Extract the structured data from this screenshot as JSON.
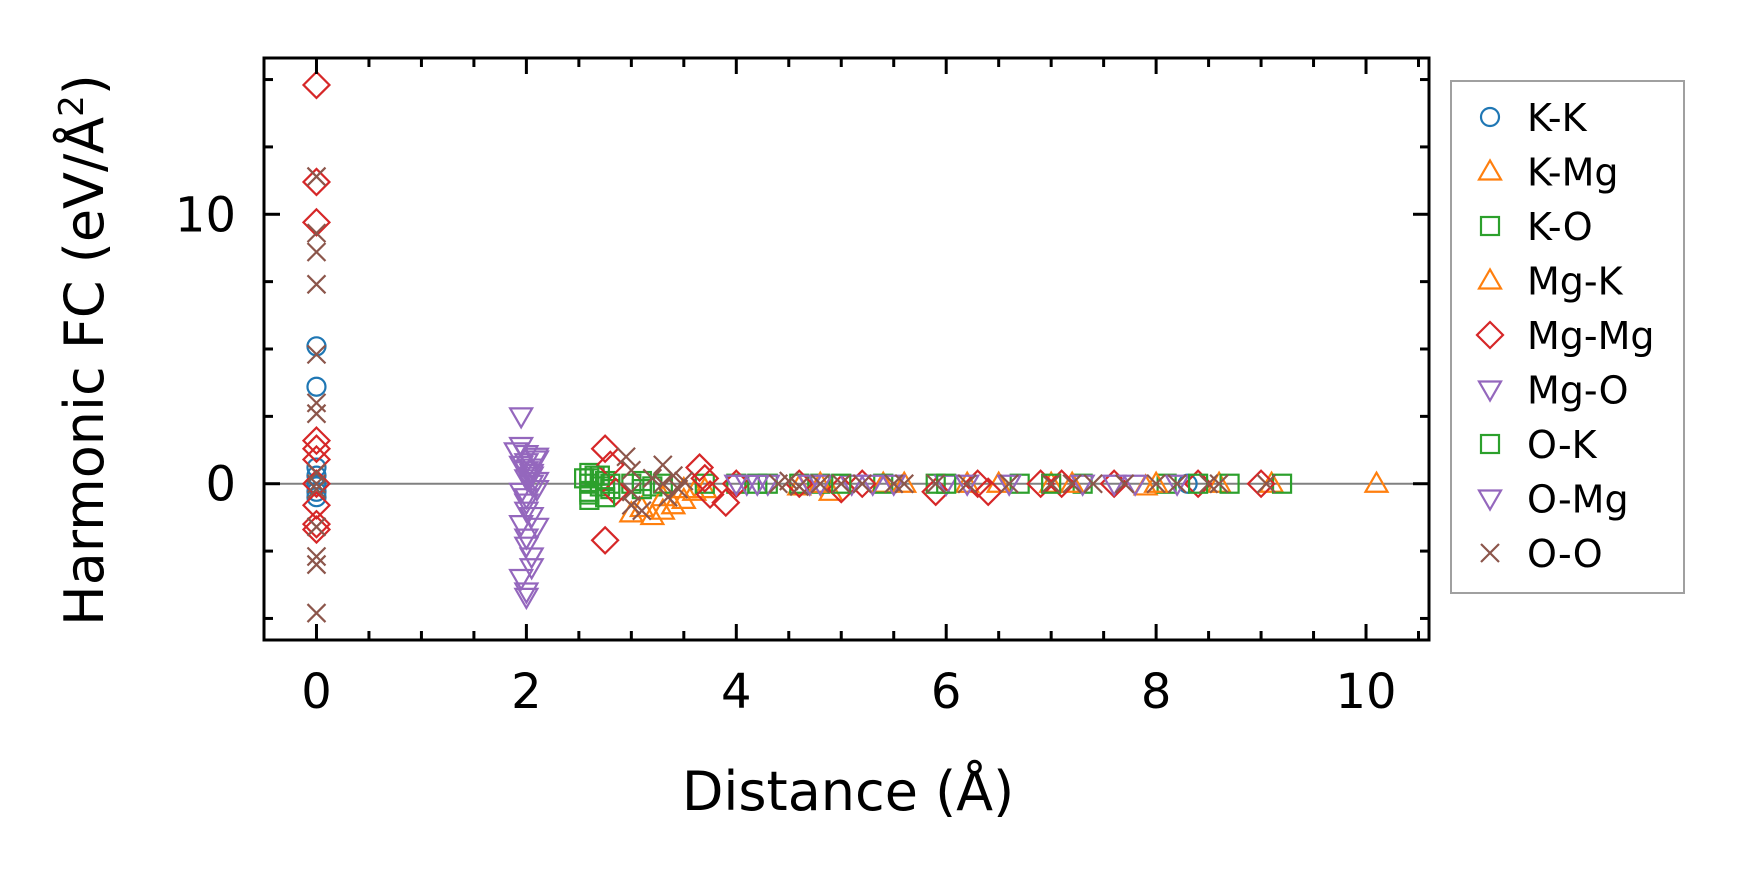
{
  "chart_data": {
    "type": "scatter",
    "title": "",
    "xlabel": "Distance (Å)",
    "ylabel_main": "Harmonic FC (eV/Å",
    "ylabel_sup": "2",
    "ylabel_close": ")",
    "xlim": [
      -0.5,
      10.6
    ],
    "ylim": [
      -5.8,
      15.8
    ],
    "x_ticks": [
      0,
      2,
      4,
      6,
      8,
      10
    ],
    "x_tick_labels": [
      "0",
      "2",
      "4",
      "6",
      "8",
      "10"
    ],
    "y_ticks": [
      0,
      10
    ],
    "y_tick_labels": [
      "0",
      "10"
    ],
    "zero_line": true,
    "grid": false,
    "legend_position": "right, outside plot",
    "series": [
      {
        "name": "K-K",
        "marker": "circle",
        "color": "#1f77b4",
        "points": [
          [
            0,
            5.1
          ],
          [
            0,
            3.6
          ],
          [
            0,
            0.6
          ],
          [
            0,
            0.3
          ],
          [
            0,
            0
          ],
          [
            0,
            -0.1
          ],
          [
            0,
            -0.3
          ],
          [
            0,
            -0.5
          ],
          [
            8.3,
            0
          ]
        ]
      },
      {
        "name": "K-Mg",
        "marker": "triangle-up",
        "color": "#ff7f0e",
        "points": [
          [
            3.2,
            -1.2
          ],
          [
            3.3,
            -1.0
          ],
          [
            3.4,
            -0.8
          ],
          [
            3.5,
            -0.6
          ],
          [
            3.6,
            -0.3
          ],
          [
            3.7,
            -0.2
          ],
          [
            4.6,
            -0.1
          ],
          [
            4.9,
            -0.3
          ],
          [
            5.4,
            0
          ],
          [
            6.2,
            0
          ],
          [
            7.0,
            0
          ],
          [
            7.9,
            -0.1
          ],
          [
            8.6,
            0
          ],
          [
            9.1,
            0
          ],
          [
            10.1,
            0
          ]
        ]
      },
      {
        "name": "K-O",
        "marker": "square",
        "color": "#2ca02c",
        "points": [
          [
            2.6,
            0.4
          ],
          [
            2.6,
            0.2
          ],
          [
            2.6,
            0
          ],
          [
            2.6,
            -0.3
          ],
          [
            2.6,
            -0.6
          ],
          [
            2.65,
            0.3
          ],
          [
            2.7,
            -0.1
          ],
          [
            2.75,
            0.1
          ],
          [
            2.8,
            -0.2
          ],
          [
            3.0,
            0
          ],
          [
            3.1,
            0.1
          ],
          [
            3.2,
            -0.1
          ],
          [
            3.7,
            0
          ],
          [
            4.0,
            0
          ],
          [
            4.3,
            0
          ],
          [
            4.6,
            0
          ],
          [
            4.8,
            0
          ],
          [
            5.4,
            0
          ],
          [
            5.9,
            0
          ],
          [
            6.7,
            0
          ],
          [
            7.3,
            0
          ],
          [
            8.1,
            0
          ],
          [
            8.7,
            0
          ],
          [
            9.2,
            0
          ]
        ]
      },
      {
        "name": "Mg-K",
        "marker": "triangle-up",
        "color": "#ff7f0e",
        "points": [
          [
            3.0,
            -1.1
          ],
          [
            3.1,
            -0.9
          ],
          [
            3.3,
            -0.5
          ],
          [
            3.5,
            -0.2
          ],
          [
            4.8,
            0
          ],
          [
            5.6,
            0
          ],
          [
            6.5,
            0
          ],
          [
            7.2,
            0
          ],
          [
            8.0,
            0
          ]
        ]
      },
      {
        "name": "Mg-Mg",
        "marker": "diamond",
        "color": "#d62728",
        "points": [
          [
            0,
            14.8
          ],
          [
            0,
            11.2
          ],
          [
            0,
            9.7
          ],
          [
            0,
            1.6
          ],
          [
            0,
            1.3
          ],
          [
            0,
            0.9
          ],
          [
            0,
            0
          ],
          [
            0,
            -0.8
          ],
          [
            0,
            -1.5
          ],
          [
            0,
            -1.7
          ],
          [
            2.75,
            1.3
          ],
          [
            2.8,
            0.7
          ],
          [
            2.75,
            -2.1
          ],
          [
            2.85,
            -0.3
          ],
          [
            3.65,
            0.6
          ],
          [
            3.7,
            0.2
          ],
          [
            3.75,
            -0.4
          ],
          [
            3.9,
            -0.7
          ],
          [
            4.0,
            0
          ],
          [
            4.6,
            0
          ],
          [
            5.0,
            -0.2
          ],
          [
            5.2,
            0
          ],
          [
            5.9,
            -0.3
          ],
          [
            6.3,
            0
          ],
          [
            6.4,
            -0.3
          ],
          [
            6.9,
            0
          ],
          [
            7.1,
            0
          ],
          [
            7.6,
            0
          ],
          [
            8.4,
            0
          ],
          [
            9.0,
            0
          ]
        ]
      },
      {
        "name": "Mg-O",
        "marker": "triangle-down",
        "color": "#9467bd",
        "points": [
          [
            1.95,
            2.5
          ],
          [
            1.95,
            1.4
          ],
          [
            2.0,
            1.1
          ],
          [
            2.0,
            0.8
          ],
          [
            2.05,
            0.6
          ],
          [
            2.0,
            0.2
          ],
          [
            2.05,
            0
          ],
          [
            2.0,
            -0.5
          ],
          [
            2.0,
            -1.0
          ],
          [
            1.95,
            -1.5
          ],
          [
            2.0,
            -2.0
          ],
          [
            2.05,
            -2.7
          ],
          [
            1.95,
            -3.5
          ],
          [
            2.0,
            -4.0
          ],
          [
            2.05,
            0.4
          ],
          [
            2.1,
            -0.2
          ],
          [
            2.1,
            1.0
          ],
          [
            4.0,
            0
          ],
          [
            4.1,
            0
          ],
          [
            4.3,
            0
          ],
          [
            4.8,
            0
          ],
          [
            5.1,
            0
          ],
          [
            5.3,
            0
          ],
          [
            6.0,
            0
          ],
          [
            6.6,
            0
          ],
          [
            7.3,
            0
          ],
          [
            7.6,
            0
          ],
          [
            8.2,
            0
          ]
        ]
      },
      {
        "name": "O-K",
        "marker": "square",
        "color": "#2ca02c",
        "points": [
          [
            2.55,
            0.2
          ],
          [
            2.6,
            -0.4
          ],
          [
            2.7,
            0.3
          ],
          [
            2.75,
            -0.5
          ],
          [
            2.8,
            0
          ],
          [
            3.1,
            -0.2
          ],
          [
            3.3,
            0
          ],
          [
            4.2,
            0
          ],
          [
            5.0,
            0
          ],
          [
            6.0,
            0
          ],
          [
            7.0,
            0
          ],
          [
            8.4,
            0
          ]
        ]
      },
      {
        "name": "O-Mg",
        "marker": "triangle-down",
        "color": "#9467bd",
        "points": [
          [
            1.9,
            1.2
          ],
          [
            1.95,
            0.7
          ],
          [
            2.0,
            0.5
          ],
          [
            2.05,
            0.3
          ],
          [
            2.1,
            0.1
          ],
          [
            1.95,
            -0.3
          ],
          [
            2.0,
            -0.7
          ],
          [
            2.05,
            -1.2
          ],
          [
            2.1,
            -1.6
          ],
          [
            2.0,
            -2.3
          ],
          [
            2.05,
            -3.1
          ],
          [
            2.0,
            -4.2
          ],
          [
            2.1,
            0.9
          ],
          [
            4.2,
            0
          ],
          [
            4.7,
            0
          ],
          [
            5.5,
            0
          ],
          [
            6.2,
            0
          ],
          [
            7.8,
            0
          ]
        ]
      },
      {
        "name": "O-O",
        "marker": "x",
        "color": "#8c564b",
        "points": [
          [
            0,
            11.4
          ],
          [
            0,
            9.3
          ],
          [
            0,
            8.6
          ],
          [
            0,
            7.4
          ],
          [
            0,
            4.8
          ],
          [
            0,
            3.0
          ],
          [
            0,
            2.6
          ],
          [
            0,
            0.4
          ],
          [
            0,
            0
          ],
          [
            0,
            -0.2
          ],
          [
            0,
            -1.6
          ],
          [
            0,
            -2.7
          ],
          [
            0,
            -3.0
          ],
          [
            0,
            -4.8
          ],
          [
            2.95,
            1.0
          ],
          [
            3.0,
            0.5
          ],
          [
            3.0,
            -0.3
          ],
          [
            3.0,
            -0.8
          ],
          [
            3.1,
            -1.0
          ],
          [
            3.2,
            0.2
          ],
          [
            3.3,
            0.7
          ],
          [
            3.3,
            0
          ],
          [
            3.35,
            -0.5
          ],
          [
            3.4,
            0.3
          ],
          [
            3.45,
            -0.2
          ],
          [
            3.5,
            0.1
          ],
          [
            4.4,
            0
          ],
          [
            4.5,
            0.1
          ],
          [
            4.6,
            -0.1
          ],
          [
            4.8,
            0
          ],
          [
            5.0,
            0
          ],
          [
            5.2,
            0
          ],
          [
            5.5,
            0
          ],
          [
            5.6,
            0
          ],
          [
            5.9,
            0
          ],
          [
            6.2,
            0
          ],
          [
            6.6,
            0
          ],
          [
            7.0,
            0
          ],
          [
            7.2,
            0
          ],
          [
            7.4,
            0
          ],
          [
            7.7,
            0
          ],
          [
            8.0,
            0
          ],
          [
            8.2,
            0
          ],
          [
            8.5,
            0
          ],
          [
            8.6,
            0
          ],
          [
            9.05,
            0
          ]
        ]
      }
    ]
  }
}
